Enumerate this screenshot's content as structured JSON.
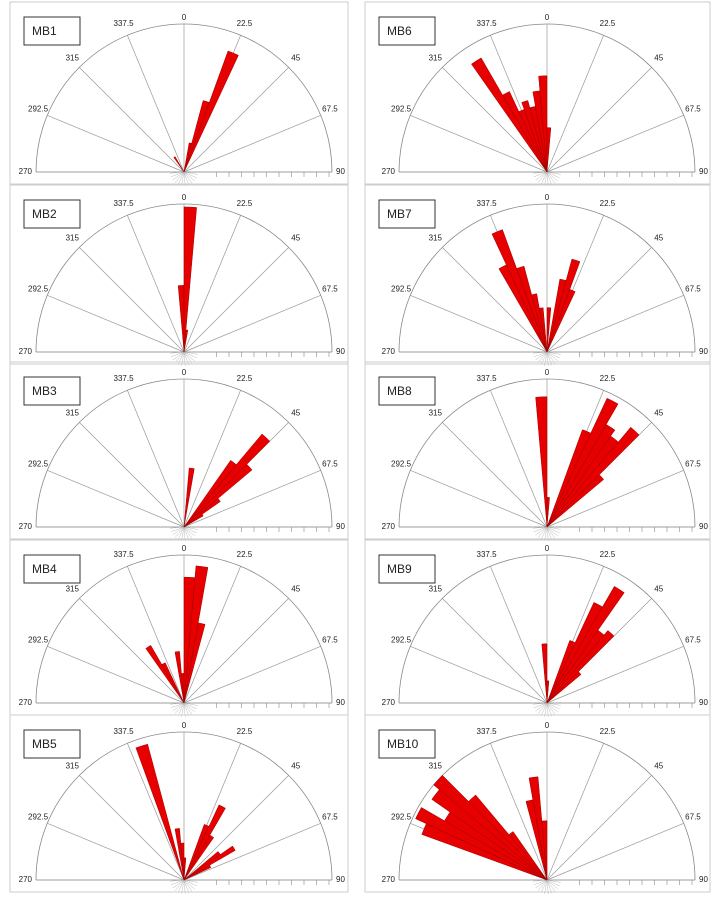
{
  "chart_data": [
    {
      "type": "rose",
      "title": "MB1",
      "color": "#e60000",
      "rlim": [
        0,
        1
      ],
      "bin_width": 5,
      "angle_ticks": [
        0,
        22.5,
        45,
        67.5,
        90,
        270,
        292.5,
        315,
        337.5
      ],
      "x": [
        327.5,
        12.5,
        17.5,
        22.5
      ],
      "values": [
        0.12,
        0.2,
        0.5,
        0.87
      ]
    },
    {
      "type": "rose",
      "title": "MB6",
      "color": "#e60000",
      "rlim": [
        0,
        1
      ],
      "bin_width": 5,
      "angle_ticks": [
        0,
        22.5,
        45,
        67.5,
        90,
        270,
        292.5,
        315,
        337.5
      ],
      "x": [
        327.5,
        332.5,
        337.5,
        342.5,
        347.5,
        352.5,
        357.5,
        2.5
      ],
      "values": [
        0.89,
        0.6,
        0.45,
        0.5,
        0.45,
        0.55,
        0.65,
        0.3
      ]
    },
    {
      "type": "rose",
      "title": "MB2",
      "color": "#e60000",
      "rlim": [
        0,
        1
      ],
      "bin_width": 5,
      "angle_ticks": [
        0,
        22.5,
        45,
        67.5,
        90,
        270,
        292.5,
        315,
        337.5
      ],
      "x": [
        357.5,
        2.5,
        7.5
      ],
      "values": [
        0.45,
        0.98,
        0.15
      ]
    },
    {
      "type": "rose",
      "title": "MB7",
      "color": "#e60000",
      "rlim": [
        0,
        1
      ],
      "bin_width": 5,
      "angle_ticks": [
        0,
        22.5,
        45,
        67.5,
        90,
        270,
        292.5,
        315,
        337.5
      ],
      "x": [
        332.5,
        337.5,
        342.5,
        347.5,
        352.5,
        2.5,
        12.5,
        17.5,
        22.5
      ],
      "values": [
        0.65,
        0.88,
        0.6,
        0.4,
        0.3,
        0.3,
        0.5,
        0.65,
        0.45
      ]
    },
    {
      "type": "rose",
      "title": "MB3",
      "color": "#e60000",
      "rlim": [
        0,
        1
      ],
      "bin_width": 5,
      "angle_ticks": [
        0,
        22.5,
        45,
        67.5,
        90,
        270,
        292.5,
        315,
        337.5
      ],
      "x": [
        7.5,
        37.5,
        42.5,
        47.5,
        52.5,
        57.5
      ],
      "values": [
        0.4,
        0.55,
        0.82,
        0.6,
        0.3,
        0.15
      ]
    },
    {
      "type": "rose",
      "title": "MB8",
      "color": "#e60000",
      "rlim": [
        0,
        1
      ],
      "bin_width": 5,
      "angle_ticks": [
        0,
        22.5,
        45,
        67.5,
        90,
        270,
        292.5,
        315,
        337.5
      ],
      "x": [
        357.5,
        2.5,
        22.5,
        27.5,
        32.5,
        37.5,
        42.5,
        47.5
      ],
      "values": [
        0.88,
        0.2,
        0.7,
        0.96,
        0.8,
        0.75,
        0.88,
        0.5
      ]
    },
    {
      "type": "rose",
      "title": "MB4",
      "color": "#e60000",
      "rlim": [
        0,
        1
      ],
      "bin_width": 5,
      "angle_ticks": [
        0,
        22.5,
        45,
        67.5,
        90,
        270,
        292.5,
        315,
        337.5
      ],
      "x": [
        327.5,
        332.5,
        352.5,
        357.5,
        2.5,
        7.5,
        12.5
      ],
      "values": [
        0.45,
        0.3,
        0.35,
        0.2,
        0.85,
        0.93,
        0.55
      ]
    },
    {
      "type": "rose",
      "title": "MB9",
      "color": "#e60000",
      "rlim": [
        0,
        1
      ],
      "bin_width": 5,
      "angle_ticks": [
        0,
        22.5,
        45,
        67.5,
        90,
        270,
        292.5,
        315,
        337.5
      ],
      "x": [
        357.5,
        2.5,
        22.5,
        27.5,
        32.5,
        37.5,
        42.5,
        47.5
      ],
      "values": [
        0.4,
        0.15,
        0.45,
        0.75,
        0.91,
        0.6,
        0.64,
        0.3
      ]
    },
    {
      "type": "rose",
      "title": "MB5",
      "color": "#e60000",
      "rlim": [
        0,
        1
      ],
      "bin_width": 5,
      "angle_ticks": [
        0,
        22.5,
        45,
        67.5,
        90,
        270,
        292.5,
        315,
        337.5
      ],
      "x": [
        342.5,
        352.5,
        357.5,
        2.5,
        22.5,
        27.5,
        32.5,
        52.5,
        57.5,
        62.5
      ],
      "values": [
        0.95,
        0.35,
        0.25,
        0.15,
        0.4,
        0.56,
        0.35,
        0.3,
        0.4,
        0.2
      ]
    },
    {
      "type": "rose",
      "title": "MB10",
      "color": "#e60000",
      "rlim": [
        0,
        1
      ],
      "bin_width": 5,
      "angle_ticks": [
        0,
        22.5,
        45,
        67.5,
        90,
        270,
        292.5,
        315,
        337.5
      ],
      "x": [
        292.5,
        297.5,
        302.5,
        307.5,
        312.5,
        317.5,
        322.5,
        347.5,
        352.5,
        357.5
      ],
      "values": [
        0.9,
        0.98,
        0.8,
        0.95,
        1.0,
        0.75,
        0.4,
        0.55,
        0.7,
        0.4
      ]
    }
  ]
}
